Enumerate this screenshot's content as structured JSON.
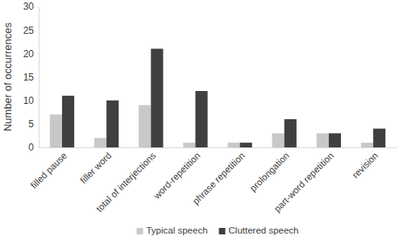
{
  "chart_data": {
    "type": "bar",
    "ylabel": "Number of occurrences",
    "categories": [
      "filled pause",
      "filler word",
      "total of interjections",
      "word-repetition",
      "phrase repetition",
      "prolongation",
      "part-word repetition",
      "revision"
    ],
    "series": [
      {
        "name": "Typical speech",
        "color": "#c8c8c8",
        "values": [
          7,
          2,
          9,
          1,
          1,
          3,
          3,
          1
        ]
      },
      {
        "name": "Cluttered speech",
        "color": "#404040",
        "values": [
          11,
          10,
          21,
          12,
          1,
          6,
          3,
          4
        ]
      }
    ],
    "ylim": [
      0,
      30
    ],
    "yticks": [
      0,
      5,
      10,
      15,
      20,
      25,
      30
    ],
    "grid": false,
    "legend": "bottom"
  }
}
